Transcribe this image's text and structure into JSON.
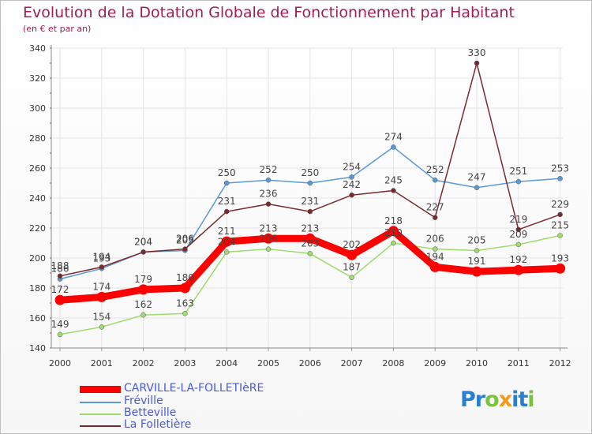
{
  "title": "Evolution de la Dotation Globale de Fonctionnement par Habitant",
  "subtitle": "(en € et par an)",
  "logo": {
    "text": "Proxiti",
    "letters": [
      "P",
      "r",
      "o",
      "x",
      "i",
      "t",
      "i"
    ],
    "colors": [
      "#2a7fd1",
      "#2a7fd1",
      "#7cc242",
      "#f39a1b",
      "#2a7fd1",
      "#2a7fd1",
      "#7cc242"
    ]
  },
  "chart_data": {
    "type": "line",
    "title": "Evolution de la Dotation Globale de Fonctionnement par Habitant",
    "ylabel": "(en € et par an)",
    "categories": [
      "2000",
      "2001",
      "2002",
      "2003",
      "2004",
      "2005",
      "2006",
      "2007",
      "2008",
      "2009",
      "2010",
      "2011",
      "2012"
    ],
    "ylim": [
      140,
      340
    ],
    "yticks": [
      140,
      160,
      180,
      200,
      220,
      240,
      260,
      280,
      300,
      320,
      340
    ],
    "grid": true,
    "series": [
      {
        "name": "CARVILLE-LA-FOLLETIèRE",
        "color": "#ff0000",
        "width": 9,
        "values": [
          172,
          174,
          179,
          180,
          211,
          213,
          213,
          202,
          218,
          194,
          191,
          192,
          193
        ]
      },
      {
        "name": "Fréville",
        "color": "#5b9ad8",
        "width": 1.5,
        "values": [
          186,
          193,
          204,
          205,
          250,
          252,
          250,
          254,
          274,
          252,
          247,
          251,
          253
        ]
      },
      {
        "name": "Betteville",
        "color": "#9fdc6f",
        "width": 1.5,
        "values": [
          149,
          154,
          162,
          163,
          204,
          206,
          203,
          187,
          210,
          206,
          205,
          209,
          215
        ]
      },
      {
        "name": "La Folletière",
        "color": "#7a2a2e",
        "width": 1.5,
        "values": [
          188,
          194,
          204,
          206,
          231,
          236,
          231,
          242,
          245,
          227,
          330,
          219,
          229
        ]
      }
    ]
  }
}
